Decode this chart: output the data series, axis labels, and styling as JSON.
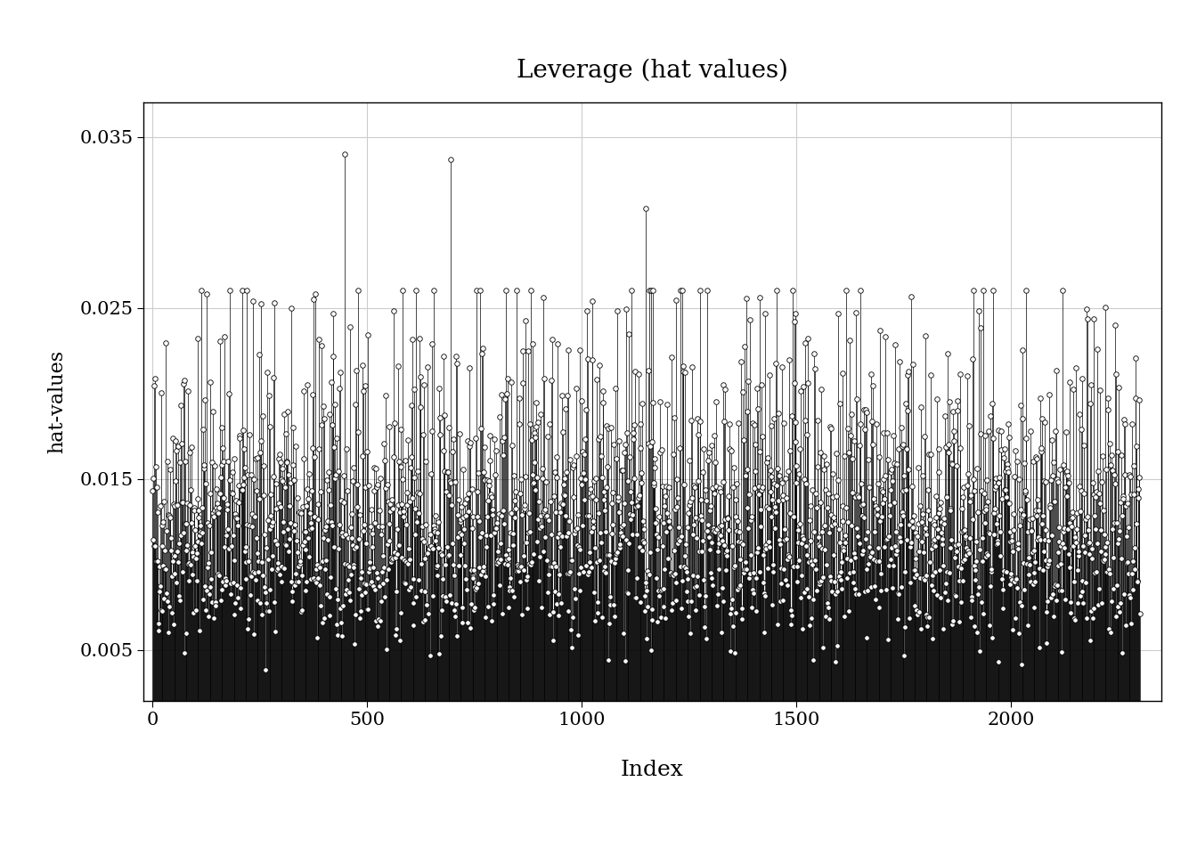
{
  "title": "Leverage (hat values)",
  "xlabel": "Index",
  "ylabel": "hat-values",
  "ylim": [
    0.002,
    0.037
  ],
  "xlim": [
    -20,
    2350
  ],
  "yticks": [
    0.005,
    0.015,
    0.025,
    0.035
  ],
  "xticks": [
    0,
    500,
    1000,
    1500,
    2000
  ],
  "n_points": 2300,
  "seed": 42,
  "outlier_indices": [
    447,
    695,
    1148
  ],
  "outlier_values": [
    0.034,
    0.0337,
    0.0308
  ],
  "background_color": "#ffffff",
  "marker_color": "#000000",
  "line_color": "#000000",
  "marker_size": 4,
  "figsize": [
    13.44,
    9.6
  ],
  "dpi": 100
}
